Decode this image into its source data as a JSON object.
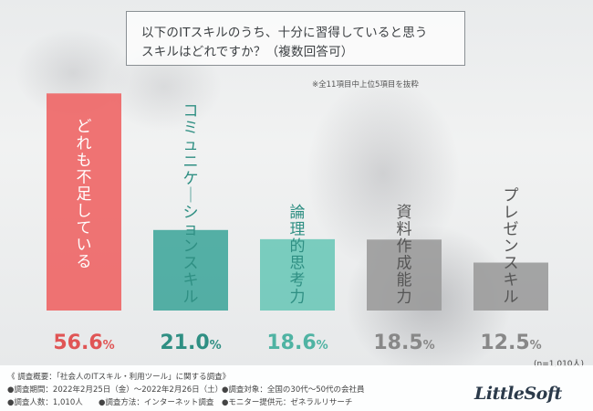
{
  "question": {
    "line1": "以下のITスキルのうち、十分に習得していると思う",
    "line2": "スキルはどれですか？（複数回答可）"
  },
  "note": "※全11項目中上位5項目を抜粋",
  "sample_size": "(n=1,010人)",
  "colors": {
    "highlight": "#ee6b6c",
    "teal": "#42a79c",
    "mint": "#6dc8b8",
    "gray": "#9b9b9b"
  },
  "chart_data": {
    "type": "bar",
    "title": "",
    "xlabel": "",
    "ylabel": "",
    "ylim": [
      0,
      60
    ],
    "categories": [
      "どれも不足している",
      "コミュニケーションスキル",
      "論理的思考力",
      "資料作成能力",
      "プレゼンスキル"
    ],
    "values": [
      56.6,
      21.0,
      18.6,
      18.5,
      12.5
    ],
    "value_labels": [
      {
        "int": "56.6",
        "unit": "%"
      },
      {
        "int": "21.0",
        "unit": "%"
      },
      {
        "int": "18.6",
        "unit": "%"
      },
      {
        "int": "18.5",
        "unit": "%"
      },
      {
        "int": "12.5",
        "unit": "%"
      }
    ],
    "bar_colors": [
      "#ee6b6c",
      "#42a79c",
      "#6dc8b8",
      "#9b9b9b",
      "#9b9b9b"
    ],
    "label_colors": [
      "#e05555",
      "#2f8f83",
      "#4fb3a3",
      "#888888",
      "#888888"
    ],
    "category_text_colors": [
      "#ffffff",
      "#2f8f83",
      "#2f8f83",
      "#555555",
      "#555555"
    ]
  },
  "footer": {
    "survey_title": "《 調査概要：「社会人のITスキル・利用ツール」に関する調査》",
    "period": "●調査期間：2022年2月25日（金）～2022年2月26日（土）",
    "count": "●調査人数：1,010人",
    "method": "●調査方法：インターネット調査",
    "target": "●調査対象：全国の30代～50代の会社員",
    "provider": "●モニター提供元：ゼネラルリサーチ"
  },
  "logo_text": "LittleSoft"
}
